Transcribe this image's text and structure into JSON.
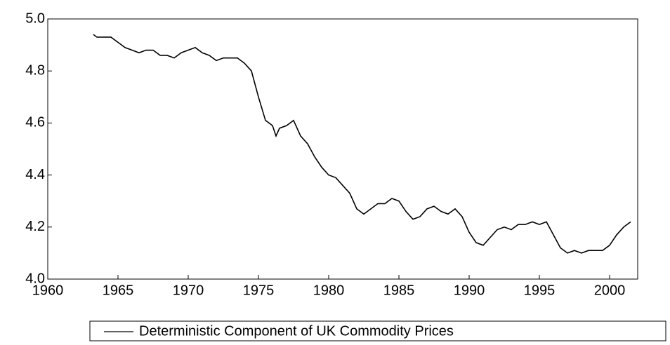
{
  "chart_data": {
    "type": "line",
    "x": [
      1963.25,
      1963.5,
      1964,
      1964.5,
      1965,
      1965.5,
      1966,
      1966.5,
      1967,
      1967.5,
      1968,
      1968.5,
      1969,
      1969.5,
      1970,
      1970.5,
      1971,
      1971.5,
      1972,
      1972.5,
      1973,
      1973.5,
      1974,
      1974.5,
      1975,
      1975.5,
      1976,
      1976.25,
      1976.5,
      1977,
      1977.5,
      1978,
      1978.5,
      1979,
      1979.5,
      1980,
      1980.5,
      1981,
      1981.5,
      1982,
      1982.5,
      1983,
      1983.5,
      1984,
      1984.5,
      1985,
      1985.5,
      1986,
      1986.5,
      1987,
      1987.5,
      1988,
      1988.5,
      1989,
      1989.5,
      1990,
      1990.5,
      1991,
      1991.5,
      1992,
      1992.5,
      1993,
      1993.5,
      1994,
      1994.5,
      1995,
      1995.5,
      1996,
      1996.5,
      1997,
      1997.5,
      1998,
      1998.5,
      1999,
      1999.5,
      2000,
      2000.5,
      2001,
      2001.5
    ],
    "series": [
      {
        "name": "Deterministic Component of UK Commodity Prices",
        "color": "#000000",
        "values": [
          4.94,
          4.93,
          4.93,
          4.93,
          4.91,
          4.89,
          4.88,
          4.87,
          4.88,
          4.88,
          4.86,
          4.86,
          4.85,
          4.87,
          4.88,
          4.89,
          4.87,
          4.86,
          4.84,
          4.85,
          4.85,
          4.85,
          4.83,
          4.8,
          4.7,
          4.61,
          4.59,
          4.55,
          4.58,
          4.59,
          4.61,
          4.55,
          4.52,
          4.47,
          4.43,
          4.4,
          4.39,
          4.36,
          4.33,
          4.27,
          4.25,
          4.27,
          4.29,
          4.29,
          4.31,
          4.3,
          4.26,
          4.23,
          4.24,
          4.27,
          4.28,
          4.26,
          4.25,
          4.27,
          4.24,
          4.18,
          4.14,
          4.13,
          4.16,
          4.19,
          4.2,
          4.19,
          4.21,
          4.21,
          4.22,
          4.21,
          4.22,
          4.17,
          4.12,
          4.1,
          4.11,
          4.1,
          4.11,
          4.11,
          4.11,
          4.13,
          4.17,
          4.2,
          4.22
        ]
      }
    ],
    "xlim": [
      1960,
      2002
    ],
    "xticks": [
      1960,
      1965,
      1970,
      1975,
      1980,
      1985,
      1990,
      1995,
      2000
    ],
    "ylim": [
      4.0,
      5.0
    ],
    "yticks": [
      {
        "value": 4.0,
        "label": "4.0"
      },
      4.2,
      4.4,
      4.6,
      4.8,
      {
        "value": 5.0,
        "label": "5.0"
      }
    ]
  }
}
